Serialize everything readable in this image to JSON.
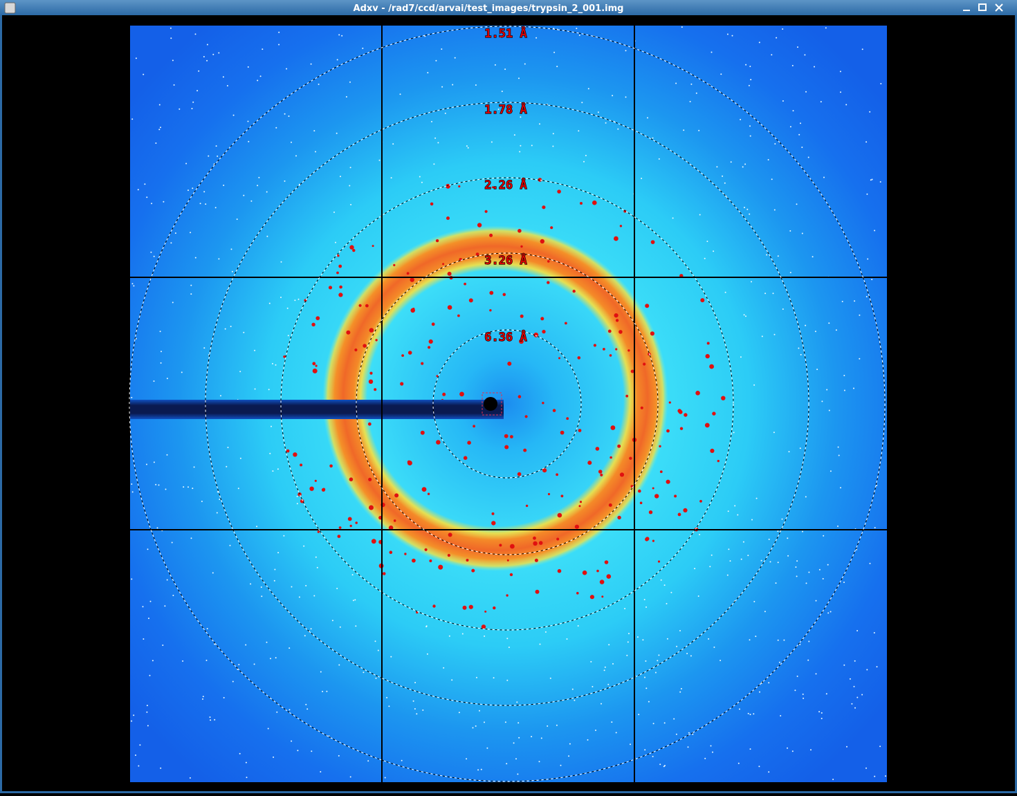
{
  "window": {
    "title": "Adxv - /rad7/ccd/arvai/test_images/trypsin_2_001.img"
  },
  "rings": [
    {
      "label": "1.51 Å"
    },
    {
      "label": "1.78 Å"
    },
    {
      "label": "2.26 Å"
    },
    {
      "label": "3.26 Å"
    },
    {
      "label": "6.36 Å"
    }
  ]
}
